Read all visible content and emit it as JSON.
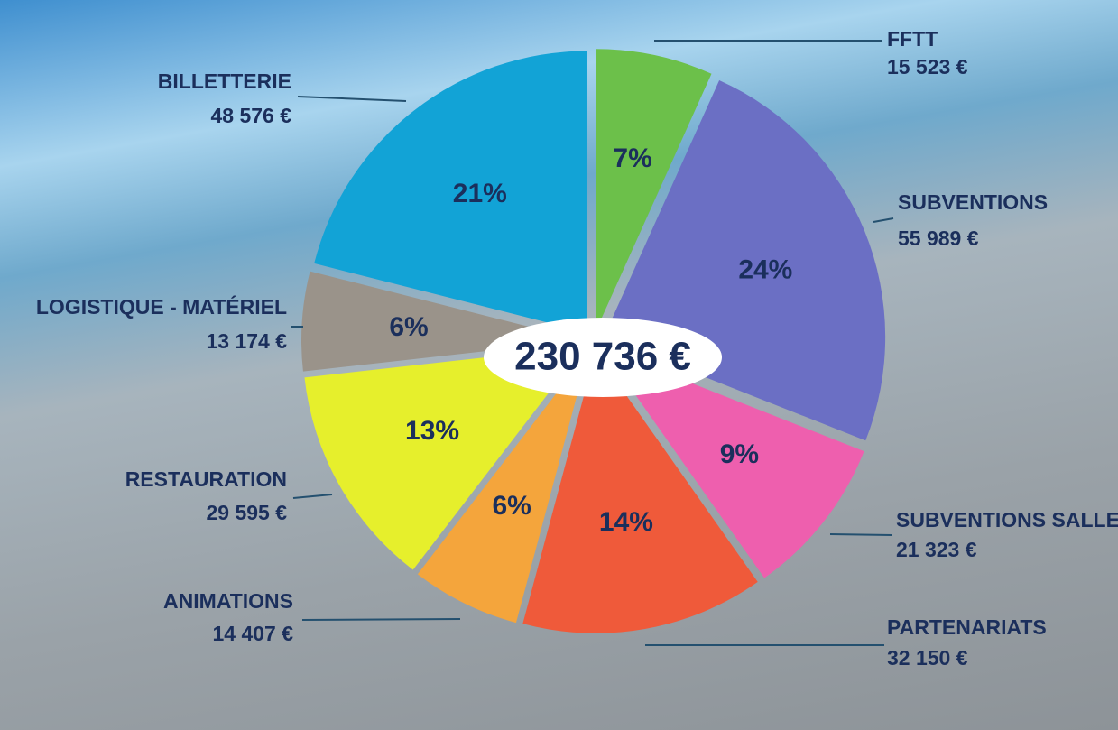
{
  "chart_data": {
    "type": "pie",
    "center_label": "230 736 €",
    "categories": [
      "FFTT",
      "SUBVENTIONS",
      "SUBVENTIONS SALLE",
      "PARTENARIATS",
      "ANIMATIONS",
      "RESTAURATION",
      "LOGISTIQUE - MATÉRIEL",
      "BILLETTERIE"
    ],
    "values": [
      15523,
      55989,
      21323,
      32150,
      14407,
      29595,
      13174,
      48576
    ],
    "value_labels": [
      "15 523 €",
      "55 989 €",
      "21 323 €",
      "32 150 €",
      "14 407 €",
      "29 595 €",
      "13 174 €",
      "48 576 €"
    ],
    "percent_labels": [
      "7%",
      "24%",
      "9%",
      "14%",
      "6%",
      "13%",
      "6%",
      "21%"
    ],
    "colors": [
      "#6cc04a",
      "#6b6fc4",
      "#ee5fae",
      "#ef5a3a",
      "#f4a53c",
      "#e6ef2c",
      "#9a938a",
      "#12a3d6"
    ]
  }
}
